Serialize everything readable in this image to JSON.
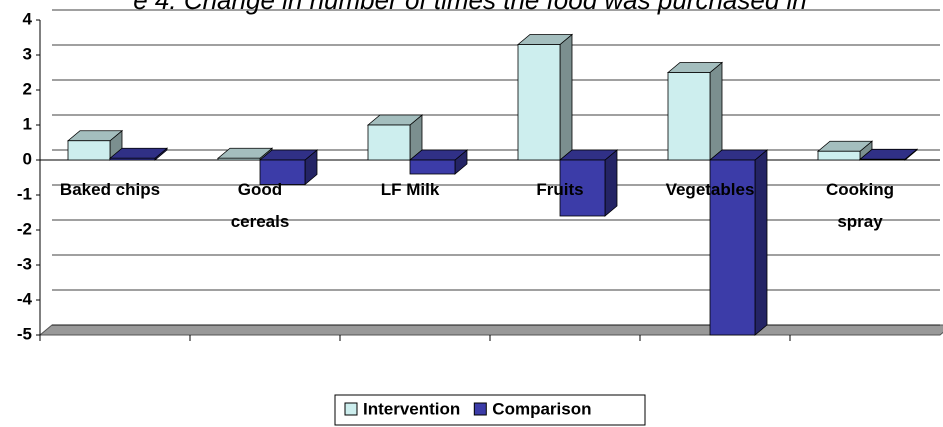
{
  "chart_data": {
    "type": "bar3d",
    "title": "e 4: Change in number of times the food was purchased in",
    "categories": [
      "Baked chips",
      "Good\ncereals",
      "LF Milk",
      "Fruits",
      "Vegetables",
      "Cooking\nspray"
    ],
    "series": [
      {
        "name": "Intervention",
        "color": "#cdeeee",
        "values": [
          0.55,
          0.05,
          1.0,
          3.3,
          2.5,
          0.25
        ]
      },
      {
        "name": "Comparison",
        "color": "#3c3ca8",
        "values": [
          0.05,
          -0.7,
          -0.4,
          -1.6,
          -5,
          0.02
        ]
      }
    ],
    "ylim": [
      -5,
      4
    ],
    "yticks": [
      -5,
      -4,
      -3,
      -2,
      -1,
      0,
      1,
      2,
      3,
      4
    ],
    "grid": true,
    "legend": "bottom"
  }
}
